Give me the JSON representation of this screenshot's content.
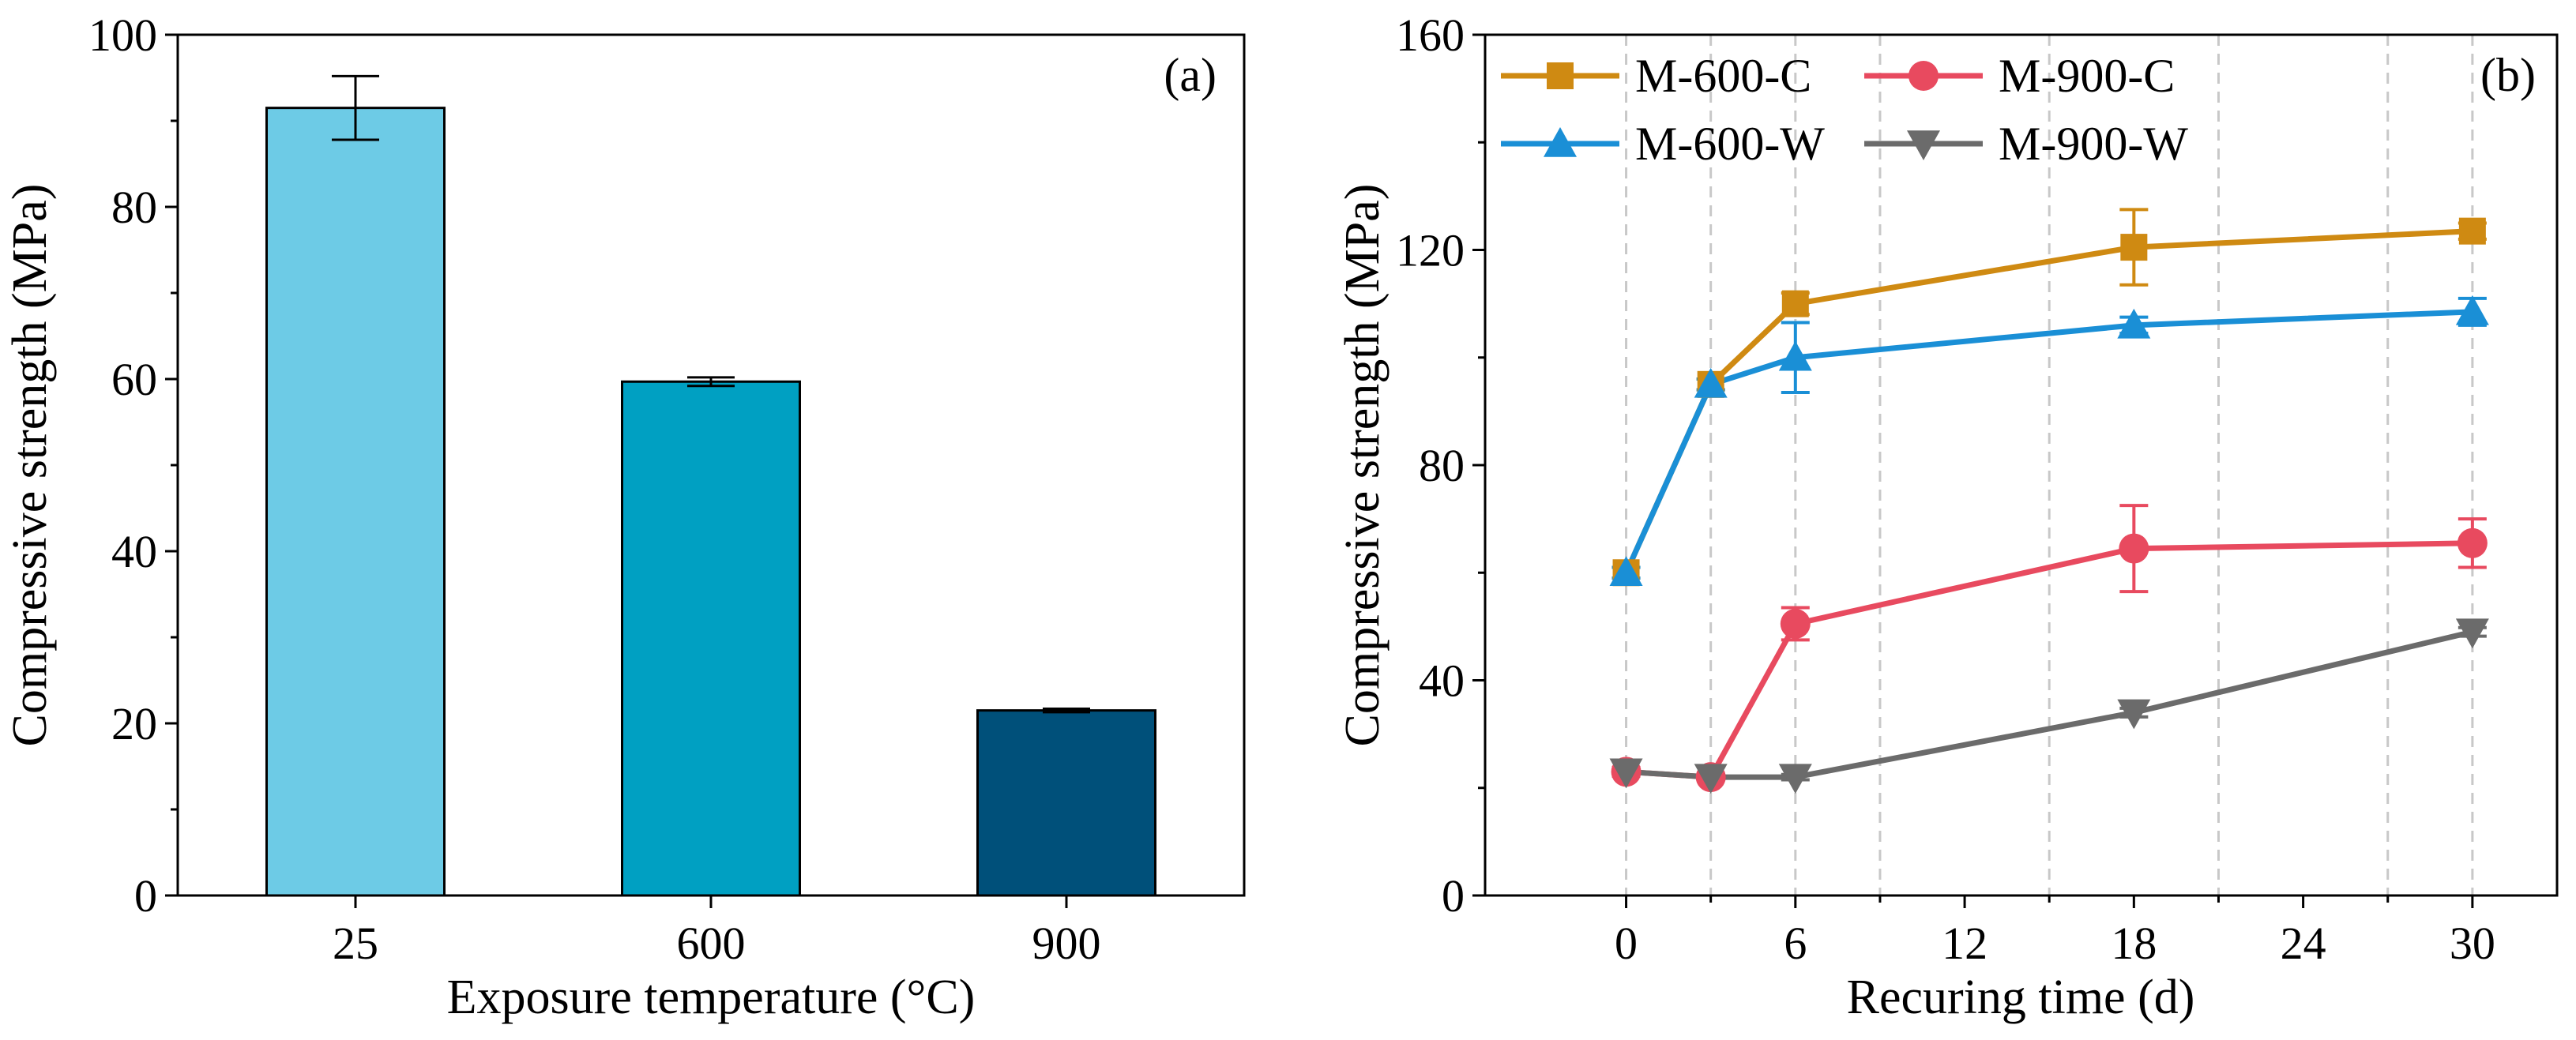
{
  "chart_data": [
    {
      "type": "bar",
      "panel_label": "(a)",
      "xlabel": "Exposure temperature (°C)",
      "ylabel": "Compressive strength (MPa)",
      "ylim": [
        0,
        100
      ],
      "yticks": [
        0,
        20,
        40,
        60,
        80,
        100
      ],
      "categories": [
        "25",
        "600",
        "900"
      ],
      "values": [
        91.5,
        59.7,
        21.5
      ],
      "errors": [
        3.7,
        0.5,
        0.2
      ],
      "colors": [
        "#6dcbe6",
        "#00a0c2",
        "#00507a"
      ]
    },
    {
      "type": "line",
      "panel_label": "(b)",
      "xlabel": "Recuring time (d)",
      "ylabel": "Compressive strength (MPa)",
      "ylim": [
        0,
        160
      ],
      "yticks": [
        0,
        40,
        80,
        120,
        160
      ],
      "xticks": [
        0,
        6,
        12,
        18,
        24,
        30
      ],
      "xlim": [
        -5,
        33
      ],
      "grid_x": [
        0,
        3,
        6,
        9,
        15,
        21,
        27,
        30
      ],
      "legend_position": "top-left",
      "series": [
        {
          "name": "M-600-C",
          "color": "#cf8a12",
          "marker": "square",
          "x": [
            0,
            3,
            6,
            18,
            30
          ],
          "values": [
            60,
            95,
            110,
            120.5,
            123.5
          ],
          "errors": [
            1.0,
            1.0,
            2.0,
            7.0,
            1.5
          ]
        },
        {
          "name": "M-900-C",
          "color": "#e84a5f",
          "marker": "circle",
          "x": [
            0,
            3,
            6,
            18,
            30
          ],
          "values": [
            23,
            22,
            50.5,
            64.5,
            65.5
          ],
          "errors": [
            0.8,
            0.5,
            3.0,
            8.0,
            4.5
          ]
        },
        {
          "name": "M-600-W",
          "color": "#1a8fd6",
          "marker": "triangle-up",
          "x": [
            0,
            3,
            6,
            18,
            30
          ],
          "values": [
            60,
            95,
            100,
            106,
            108.5
          ],
          "errors": [
            1.0,
            1.0,
            6.5,
            1.5,
            2.5
          ]
        },
        {
          "name": "M-900-W",
          "color": "#6b6b6b",
          "marker": "triangle-down",
          "x": [
            0,
            3,
            6,
            18,
            30
          ],
          "values": [
            23,
            22,
            22,
            34,
            49
          ],
          "errors": [
            0.5,
            0.5,
            0.5,
            0.8,
            0.8
          ]
        }
      ]
    }
  ]
}
